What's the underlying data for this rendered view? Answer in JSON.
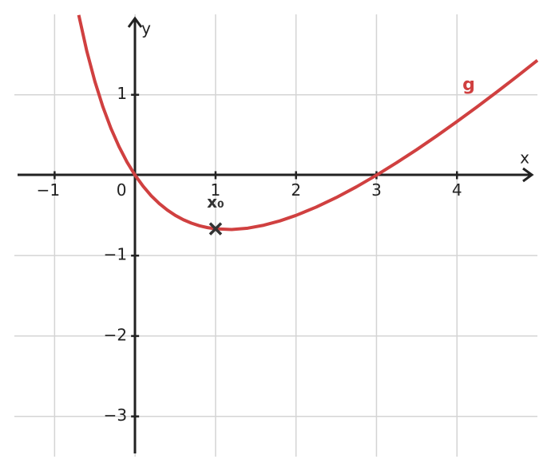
{
  "chart_data": {
    "type": "line",
    "x_label": "x",
    "y_label": "y",
    "xlim": [
      -1.5,
      5.0
    ],
    "ylim": [
      -3.5,
      2.0
    ],
    "xticks": [
      {
        "value": -1,
        "label": "−1"
      },
      0,
      1,
      2,
      3,
      4
    ],
    "yticks": [
      {
        "value": -3,
        "label": "−3"
      },
      {
        "value": -2,
        "label": "−2"
      },
      {
        "value": -1,
        "label": "−1"
      },
      1
    ],
    "grid": true,
    "series": [
      {
        "name": "g",
        "color": "#d04040",
        "x": [
          -0.7,
          -0.6,
          -0.5,
          -0.4,
          -0.3,
          -0.2,
          -0.1,
          0,
          0.1,
          0.2,
          0.3,
          0.4,
          0.5,
          0.6,
          0.7,
          0.8,
          0.9,
          1.0,
          1.2,
          1.4,
          1.6,
          1.8,
          2.0,
          2.25,
          2.5,
          2.75,
          3,
          3.25,
          3.5,
          3.75,
          4,
          4.25,
          4.5,
          4.75,
          5
        ],
        "values": [
          1.992,
          1.543,
          1.167,
          0.85,
          0.582,
          0.356,
          0.163,
          0,
          -0.138,
          -0.255,
          -0.352,
          -0.433,
          -0.5,
          -0.554,
          -0.596,
          -0.629,
          -0.652,
          -0.667,
          -0.675,
          -0.659,
          -0.622,
          -0.568,
          -0.5,
          -0.397,
          -0.278,
          -0.145,
          0,
          0.155,
          0.318,
          0.489,
          0.667,
          0.85,
          1.038,
          1.231,
          1.429
        ]
      }
    ],
    "marker": {
      "label": "x₀",
      "x": 1,
      "y": -0.667
    }
  }
}
